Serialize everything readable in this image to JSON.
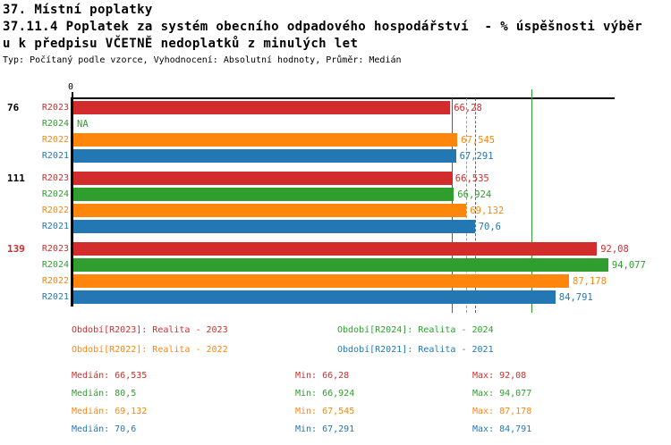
{
  "header": {
    "title1": "37. Místní poplatky",
    "title2": "37.11.4 Poplatek za systém obecního odpadového hospodářství  - % úspěšnosti výběr",
    "title3": "u k předpisu VČETNĚ nedoplatků z minulých let",
    "meta": "Typ: Počítaný podle vzorce, Vyhodnocení: Absolutní hodnoty, Průměr: Medián"
  },
  "colors": {
    "R2023": "#d22c2c",
    "R2024": "#2f9e2e",
    "R2022": "#ff860d",
    "R2021": "#2378b4",
    "axis": "#000000",
    "group_highlight": "#d22c2c",
    "group_normal": "#000000"
  },
  "chart_data": {
    "type": "bar",
    "orientation": "horizontal",
    "title": "37.11.4 Poplatek za systém obecního odpadového hospodářství - % úspěšnosti výběru k předpisu VČETNĚ nedoplatků z minulých let",
    "xlabel": "",
    "ylabel": "",
    "xlim": [
      0,
      95
    ],
    "zero_label": "0",
    "series_order": [
      "R2023",
      "R2024",
      "R2022",
      "R2021"
    ],
    "groups": [
      {
        "label": "76",
        "highlight": false,
        "bars": [
          {
            "series": "R2023",
            "value": 66.28,
            "display": "66,28"
          },
          {
            "series": "R2024",
            "value": null,
            "display": "NA"
          },
          {
            "series": "R2022",
            "value": 67.545,
            "display": "67,545"
          },
          {
            "series": "R2021",
            "value": 67.291,
            "display": "67,291"
          }
        ]
      },
      {
        "label": "111",
        "highlight": false,
        "bars": [
          {
            "series": "R2023",
            "value": 66.535,
            "display": "66,535"
          },
          {
            "series": "R2024",
            "value": 66.924,
            "display": "66,924"
          },
          {
            "series": "R2022",
            "value": 69.132,
            "display": "69,132"
          },
          {
            "series": "R2021",
            "value": 70.6,
            "display": "70,6"
          }
        ]
      },
      {
        "label": "139",
        "highlight": true,
        "bars": [
          {
            "series": "R2023",
            "value": 92.08,
            "display": "92,08"
          },
          {
            "series": "R2024",
            "value": 94.077,
            "display": "94,077"
          },
          {
            "series": "R2022",
            "value": 87.178,
            "display": "87,178"
          },
          {
            "series": "R2021",
            "value": 84.791,
            "display": "84,791"
          }
        ]
      }
    ],
    "median_lines": [
      {
        "series": "R2023",
        "value": 66.535,
        "style": "solid",
        "tall": false
      },
      {
        "series": "R2022",
        "value": 69.132,
        "style": "dashed",
        "tall": false
      },
      {
        "series": "R2021",
        "value": 70.6,
        "style": "dashed",
        "tall": false
      },
      {
        "series": "R2024",
        "value": 80.5,
        "style": "solid",
        "tall": true
      }
    ]
  },
  "legend": {
    "items": [
      {
        "series": "R2023",
        "label": "Období[R2023]: Realita - 2023",
        "col": 0,
        "row": 0
      },
      {
        "series": "R2024",
        "label": "Období[R2024]: Realita - 2024",
        "col": 1,
        "row": 0
      },
      {
        "series": "R2022",
        "label": "Období[R2022]: Realita - 2022",
        "col": 0,
        "row": 1
      },
      {
        "series": "R2021",
        "label": "Období[R2021]: Realita - 2021",
        "col": 1,
        "row": 1
      }
    ]
  },
  "stats": {
    "labels": {
      "median": "Medián",
      "min": "Min",
      "max": "Max"
    },
    "rows": [
      {
        "series": "R2023",
        "median": "66,535",
        "min": "66,28",
        "max": "92,08"
      },
      {
        "series": "R2024",
        "median": "80,5",
        "min": "66,924",
        "max": "94,077"
      },
      {
        "series": "R2022",
        "median": "69,132",
        "min": "67,545",
        "max": "87,178"
      },
      {
        "series": "R2021",
        "median": "70,6",
        "min": "67,291",
        "max": "84,791"
      }
    ]
  }
}
